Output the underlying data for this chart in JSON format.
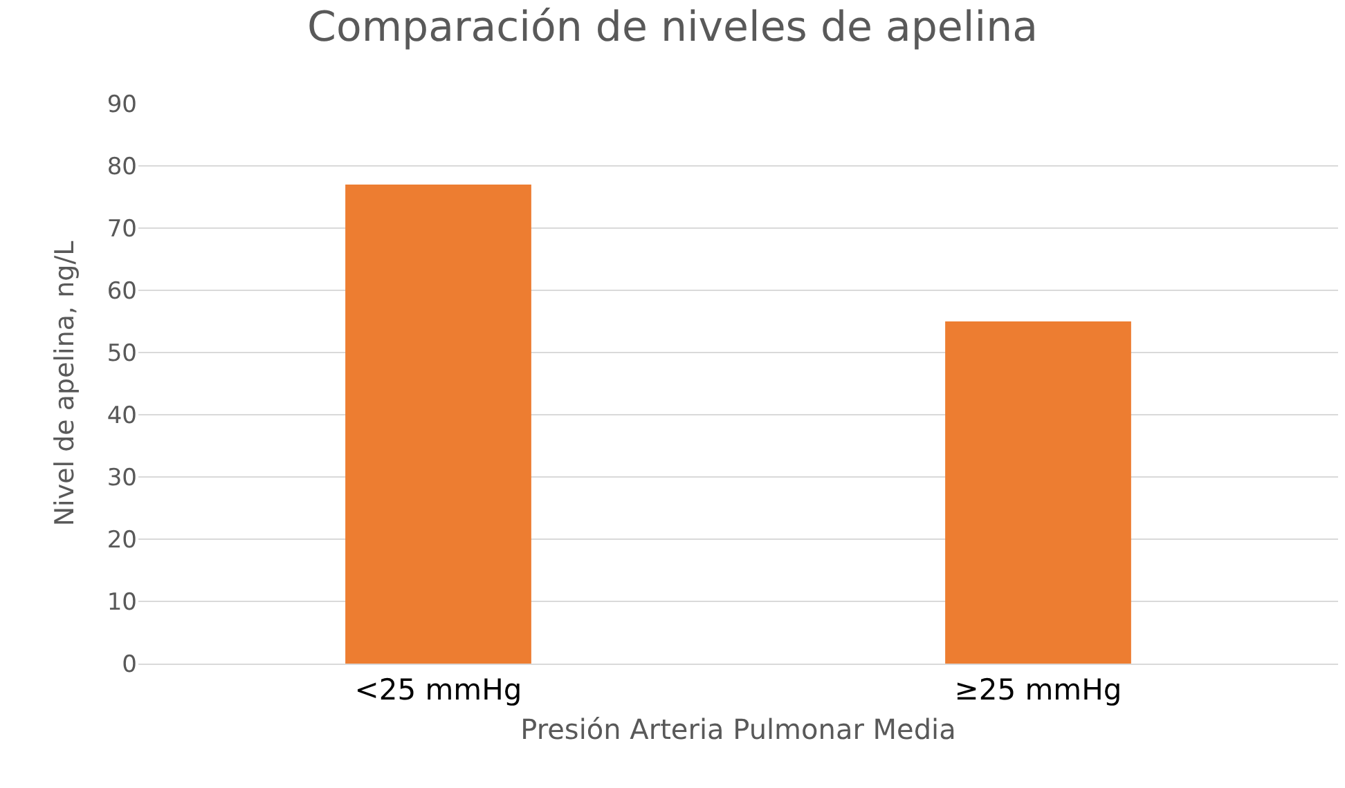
{
  "chart_data": {
    "type": "bar",
    "title": "Comparación de niveles de apelina",
    "xlabel": "Presión Arteria Pulmonar Media",
    "ylabel": "Nivel de apelina, ng/L",
    "categories": [
      "<25 mmHg",
      "≥25 mmHg"
    ],
    "values": [
      77,
      55
    ],
    "color": "#ed7d31",
    "ylim": [
      0,
      90
    ],
    "yticks": [
      0,
      10,
      20,
      30,
      40,
      50,
      60,
      70,
      80,
      90
    ],
    "grid": "y"
  }
}
